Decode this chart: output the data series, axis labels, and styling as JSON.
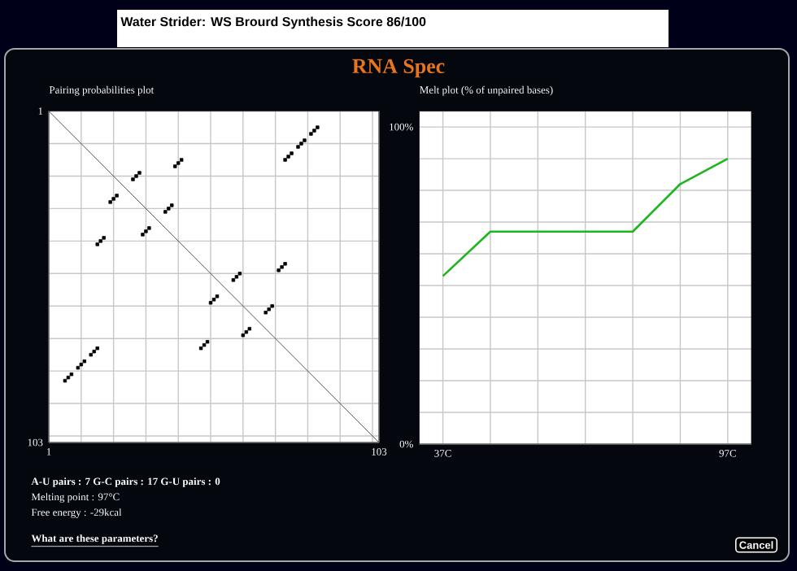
{
  "chart_data": [
    {
      "type": "scatter",
      "title": "Pairing probabilities plot",
      "xlim": [
        1,
        103
      ],
      "ylim": [
        103,
        1
      ],
      "xticks": [
        1,
        {
          "value": 11,
          "label": null
        },
        {
          "value": 21,
          "label": null
        },
        {
          "value": 31,
          "label": null
        },
        {
          "value": 41,
          "label": null
        },
        {
          "value": 51,
          "label": null
        },
        {
          "value": 61,
          "label": null
        },
        {
          "value": 71,
          "label": null
        },
        {
          "value": 81,
          "label": null
        },
        {
          "value": 91,
          "label": null
        },
        {
          "value": 101,
          "label": null
        },
        103
      ],
      "yticks": [
        1,
        {
          "value": 11,
          "label": null
        },
        {
          "value": 21,
          "label": null
        },
        {
          "value": 31,
          "label": null
        },
        {
          "value": 41,
          "label": null
        },
        {
          "value": 51,
          "label": null
        },
        {
          "value": 61,
          "label": null
        },
        {
          "value": 71,
          "label": null
        },
        {
          "value": 81,
          "label": null
        },
        {
          "value": 91,
          "label": null
        },
        {
          "value": 101,
          "label": null
        },
        103
      ],
      "grid": true,
      "series": [
        {
          "type": "scatter",
          "marker": "square",
          "color": "#000000",
          "x": [
            74,
            75,
            76,
            78,
            79,
            80,
            82,
            83,
            84,
            40,
            41,
            42,
            27,
            28,
            29,
            20,
            21,
            22,
            37,
            38,
            39,
            30,
            31,
            32,
            16,
            17,
            18,
            72,
            73,
            74,
            58,
            59,
            60,
            51,
            52,
            53,
            68,
            69,
            70,
            61,
            62,
            63,
            48,
            49,
            50,
            14,
            15,
            16,
            10,
            11,
            12,
            6,
            7,
            8
          ],
          "values": [
            16,
            15,
            14,
            12,
            11,
            10,
            8,
            7,
            6,
            18,
            17,
            16,
            22,
            21,
            20,
            29,
            28,
            27,
            32,
            31,
            30,
            39,
            38,
            37,
            42,
            41,
            40,
            50,
            49,
            48,
            53,
            52,
            51,
            60,
            59,
            58,
            63,
            62,
            61,
            70,
            69,
            68,
            74,
            73,
            72,
            76,
            75,
            74,
            80,
            79,
            78,
            84,
            83,
            82
          ]
        },
        {
          "type": "line",
          "color": "#555555",
          "x": [
            1,
            103
          ],
          "values": [
            1,
            103
          ]
        }
      ]
    },
    {
      "type": "line",
      "title": "Melt plot (% of unpaired bases)",
      "xlim": [
        32,
        102
      ],
      "ylim": [
        0,
        105
      ],
      "xticks": [
        {
          "value": 37,
          "label": "37C"
        },
        {
          "value": 47,
          "label": null
        },
        {
          "value": 57,
          "label": null
        },
        {
          "value": 67,
          "label": null
        },
        {
          "value": 77,
          "label": null
        },
        {
          "value": 87,
          "label": null
        },
        {
          "value": 97,
          "label": "97C"
        }
      ],
      "yticks": [
        {
          "value": 0,
          "label": "0%"
        },
        {
          "value": 10,
          "label": null
        },
        {
          "value": 20,
          "label": null
        },
        {
          "value": 30,
          "label": null
        },
        {
          "value": 40,
          "label": null
        },
        {
          "value": 50,
          "label": null
        },
        {
          "value": 60,
          "label": null
        },
        {
          "value": 70,
          "label": null
        },
        {
          "value": 80,
          "label": null
        },
        {
          "value": 90,
          "label": null
        },
        {
          "value": 100,
          "label": "100%"
        }
      ],
      "grid": true,
      "marker": "none",
      "line_style": "solid",
      "series": [
        {
          "color": "#1fb51f",
          "x": [
            37,
            47,
            77,
            87,
            97
          ],
          "values": [
            53,
            67,
            67,
            82,
            90
          ]
        }
      ]
    },
    {
      "type": "other",
      "title": "RNA Spec",
      "annotations": [
        "Water Strider: WS Brourd    Synthesis Score 86/100",
        "A-U pairs : 7    G-C pairs : 17    G-U pairs : 0",
        "Melting point : 97°C",
        "Free energy : -29kcal",
        "What are these parameters?",
        "Cancel"
      ]
    }
  ]
}
